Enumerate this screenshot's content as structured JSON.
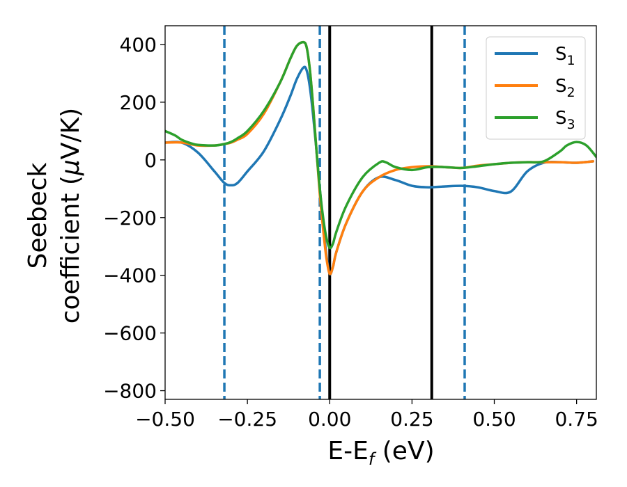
{
  "chart_data": {
    "type": "line",
    "xlabel": "E-E",
    "xlabel_sub": "f",
    "xlabel_unit": " (eV)",
    "ylabel_line1": "Seebeck",
    "ylabel_line2": "coefficient  (",
    "ylabel_mu": "μ",
    "ylabel_unit": "V/K)",
    "xlim": [
      -0.5,
      0.81
    ],
    "ylim": [
      -830,
      465
    ],
    "x_ticks": [
      -0.5,
      -0.25,
      0.0,
      0.25,
      0.5,
      0.75
    ],
    "x_tick_labels": [
      "−0.50",
      "−0.25",
      "0.00",
      "0.25",
      "0.50",
      "0.75"
    ],
    "y_ticks": [
      400,
      200,
      0,
      -200,
      -400,
      -600,
      -800
    ],
    "y_tick_labels": [
      "400",
      "200",
      "0",
      "−200",
      "−400",
      "−600",
      "−800"
    ],
    "legend_position": "top-right",
    "grid": false,
    "series": [
      {
        "name": "S",
        "sub": "1",
        "color": "#1f77b4",
        "x": [
          -0.5,
          -0.45,
          -0.4,
          -0.35,
          -0.32,
          -0.3,
          -0.28,
          -0.25,
          -0.2,
          -0.15,
          -0.12,
          -0.1,
          -0.08,
          -0.07,
          -0.06,
          -0.05,
          -0.04,
          -0.03,
          -0.02,
          -0.01,
          0.0,
          0.01,
          0.02,
          0.05,
          0.1,
          0.15,
          0.2,
          0.25,
          0.3,
          0.35,
          0.4,
          0.45,
          0.5,
          0.55,
          0.6,
          0.65,
          0.7,
          0.75,
          0.8
        ],
        "y": [
          60,
          60,
          25,
          -40,
          -80,
          -88,
          -80,
          -40,
          30,
          140,
          220,
          280,
          320,
          310,
          250,
          150,
          30,
          -100,
          -220,
          -330,
          -395,
          -370,
          -320,
          -220,
          -110,
          -60,
          -70,
          -90,
          -95,
          -92,
          -90,
          -95,
          -108,
          -110,
          -40,
          -10,
          -8,
          -10,
          -5
        ]
      },
      {
        "name": "S",
        "sub": "2",
        "color": "#ff7f0e",
        "x": [
          -0.5,
          -0.45,
          -0.4,
          -0.35,
          -0.32,
          -0.3,
          -0.28,
          -0.25,
          -0.2,
          -0.15,
          -0.12,
          -0.1,
          -0.08,
          -0.07,
          -0.06,
          -0.05,
          -0.04,
          -0.03,
          -0.02,
          -0.01,
          0.0,
          0.01,
          0.02,
          0.05,
          0.1,
          0.15,
          0.2,
          0.25,
          0.3,
          0.35,
          0.4,
          0.45,
          0.5,
          0.55,
          0.6,
          0.65,
          0.7,
          0.75,
          0.8
        ],
        "y": [
          60,
          60,
          50,
          50,
          55,
          60,
          70,
          90,
          160,
          270,
          350,
          395,
          408,
          390,
          310,
          180,
          30,
          -120,
          -240,
          -340,
          -395,
          -370,
          -320,
          -220,
          -110,
          -60,
          -35,
          -25,
          -22,
          -25,
          -28,
          -20,
          -15,
          -10,
          -8,
          -8,
          -8,
          -10,
          -5
        ]
      },
      {
        "name": "S",
        "sub": "3",
        "color": "#2ca02c",
        "x": [
          -0.5,
          -0.47,
          -0.45,
          -0.42,
          -0.4,
          -0.35,
          -0.32,
          -0.3,
          -0.28,
          -0.25,
          -0.2,
          -0.15,
          -0.12,
          -0.1,
          -0.08,
          -0.07,
          -0.06,
          -0.05,
          -0.04,
          -0.03,
          -0.02,
          -0.01,
          0.0,
          0.01,
          0.02,
          0.05,
          0.1,
          0.15,
          0.17,
          0.2,
          0.25,
          0.3,
          0.35,
          0.4,
          0.45,
          0.5,
          0.55,
          0.6,
          0.65,
          0.7,
          0.72,
          0.75,
          0.78,
          0.81
        ],
        "y": [
          100,
          85,
          70,
          57,
          52,
          50,
          55,
          62,
          75,
          100,
          170,
          270,
          350,
          395,
          408,
          390,
          310,
          180,
          30,
          -100,
          -200,
          -270,
          -305,
          -290,
          -250,
          -160,
          -60,
          -10,
          -8,
          -25,
          -35,
          -25,
          -25,
          -28,
          -22,
          -15,
          -10,
          -8,
          -5,
          30,
          50,
          62,
          50,
          10
        ]
      }
    ],
    "vlines": [
      {
        "x": -0.32,
        "style": "dashed",
        "color": "#1f77b4"
      },
      {
        "x": -0.03,
        "style": "dashed",
        "color": "#1f77b4"
      },
      {
        "x": 0.0,
        "style": "solid",
        "color": "#000000"
      },
      {
        "x": 0.31,
        "style": "solid",
        "color": "#000000"
      },
      {
        "x": 0.41,
        "style": "dashed",
        "color": "#1f77b4"
      }
    ]
  }
}
